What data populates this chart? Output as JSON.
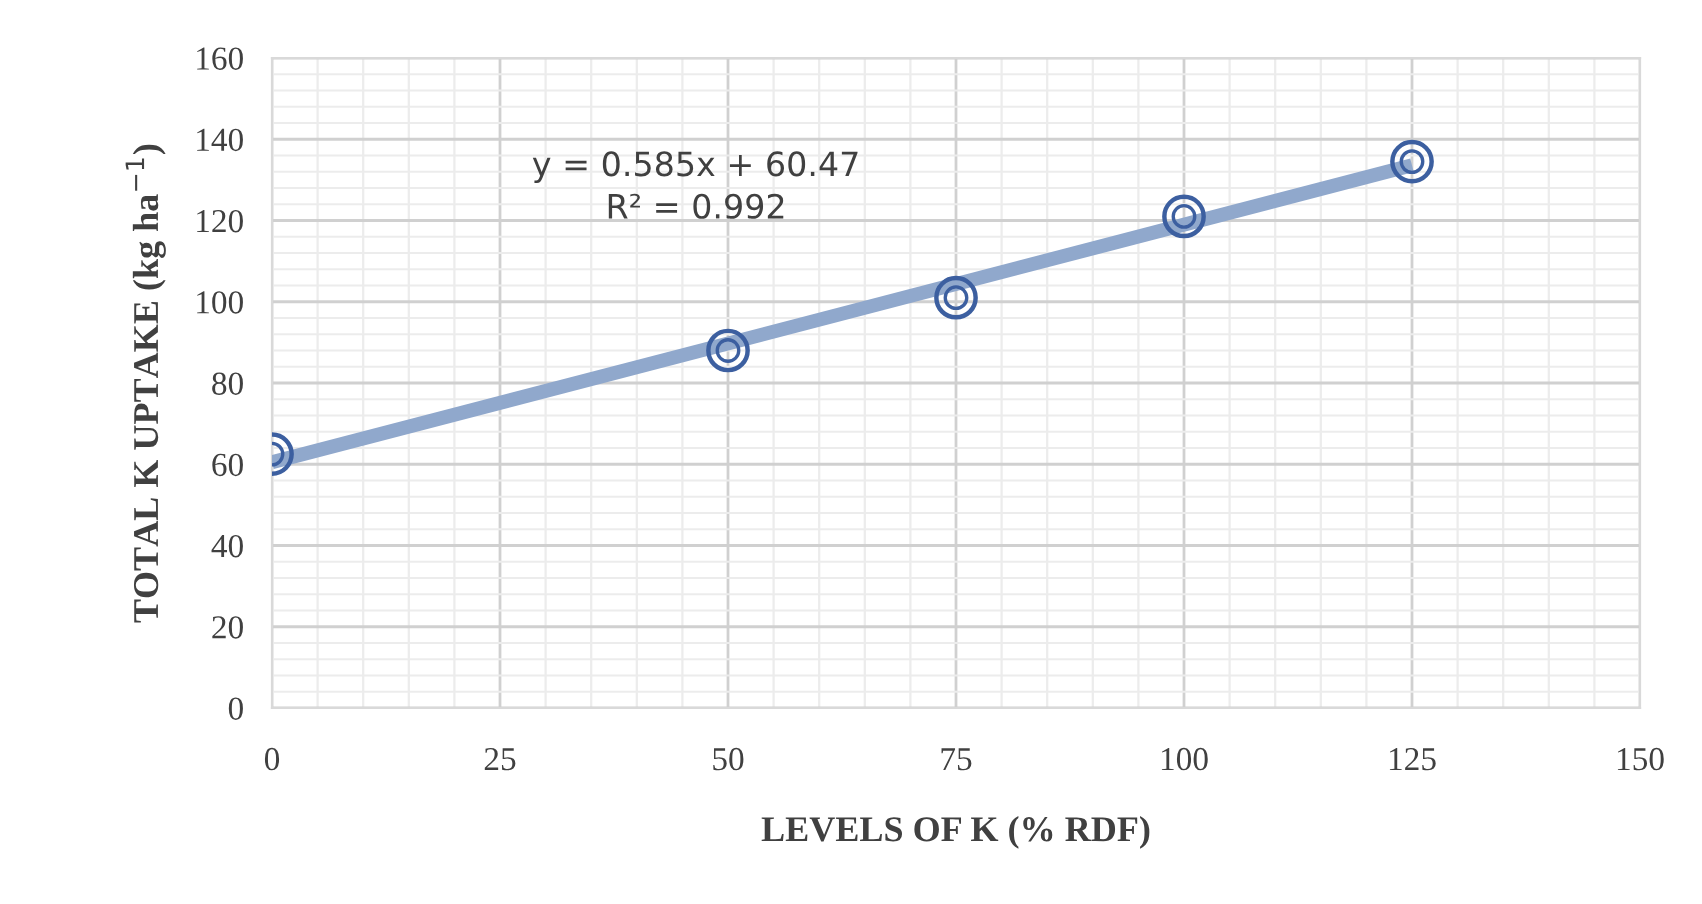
{
  "chart_data": {
    "type": "scatter",
    "xlabel": "LEVELS OF K (% RDF)",
    "ylabel": "TOTAL K UPTAKE (kg ha$^{−1}$)",
    "x": [
      0,
      50,
      75,
      100,
      125
    ],
    "series": [
      {
        "type": "line",
        "color": "#90a8cc",
        "x": [
          0,
          125
        ],
        "values": [
          60.5,
          133.6
        ],
        "marker": "none"
      },
      {
        "color": "#3c5fa0",
        "values": [
          62.5,
          88,
          101,
          121,
          134.5
        ],
        "marker": "circle"
      }
    ],
    "annotations": [
      "y = 0.585x + 60.47\nR² = 0.992"
    ],
    "xlim": [
      0,
      150
    ],
    "xticks": [
      0,
      25,
      50,
      75,
      100,
      125,
      150
    ],
    "ylim": [
      0,
      160
    ],
    "yticks": [
      0,
      20,
      40,
      60,
      80,
      100,
      120,
      140,
      160
    ],
    "grid": true
  }
}
